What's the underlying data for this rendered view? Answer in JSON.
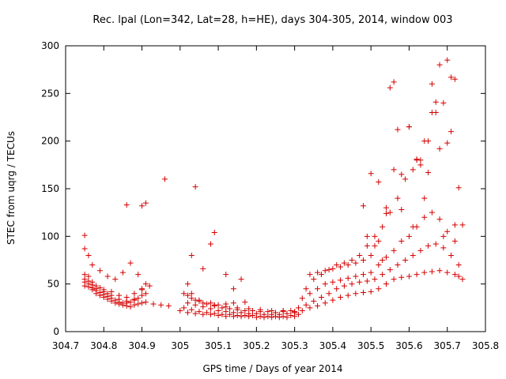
{
  "chart_data": {
    "type": "scatter",
    "title": "Rec. lpal (Lon=342, Lat=28, h=HE), days 304-305, 2014, window 003",
    "xlabel": "GPS time / Days of year 2014",
    "ylabel": "STEC from uqrg / TECUs",
    "xlim": [
      304.7,
      305.8
    ],
    "ylim": [
      0,
      300
    ],
    "xticks": [
      304.7,
      304.8,
      304.9,
      305,
      305.1,
      305.2,
      305.3,
      305.4,
      305.5,
      305.6,
      305.7,
      305.8
    ],
    "xtick_labels": [
      "304.7",
      "304.8",
      "304.9",
      "305",
      "305.1",
      "305.2",
      "305.3",
      "305.4",
      "305.5",
      "305.6",
      "305.7",
      "305.8"
    ],
    "yticks": [
      0,
      50,
      100,
      150,
      200,
      250,
      300
    ],
    "ytick_labels": [
      "0",
      "50",
      "100",
      "150",
      "200",
      "250",
      "300"
    ],
    "grid": false,
    "marker": "plus",
    "color": "#d40000",
    "series": [
      {
        "x": [
          304.75,
          304.76,
          304.77,
          304.78,
          304.79,
          304.8,
          304.81,
          304.82,
          304.83,
          304.84,
          304.85,
          304.86,
          304.87,
          304.88,
          304.89,
          304.9,
          304.91,
          304.93,
          304.95,
          304.97,
          304.75,
          304.76,
          304.77,
          304.78,
          304.79,
          304.8,
          304.81,
          304.82,
          304.83,
          304.84,
          304.85,
          304.86,
          304.87,
          304.88,
          304.89,
          304.9,
          304.91,
          304.75,
          304.76,
          304.77,
          304.78,
          304.8,
          304.81,
          304.82,
          304.84,
          304.86,
          304.88,
          304.9,
          304.75,
          304.76,
          304.77,
          304.78,
          304.79,
          304.8,
          304.82,
          304.84,
          304.86,
          304.88,
          304.9,
          304.92,
          304.75,
          304.76,
          304.77,
          304.79,
          304.81,
          304.83,
          304.85,
          304.87,
          304.89,
          304.91,
          304.75,
          304.86,
          304.9,
          304.91,
          304.96,
          305.04,
          305.08,
          305.02,
          305.03,
          305.04,
          305.06,
          305.09,
          305.12,
          305.14,
          305.17
        ],
        "y": [
          48,
          47,
          44,
          40,
          38,
          36,
          34,
          32,
          30,
          29,
          28,
          27,
          26,
          28,
          29,
          30,
          31,
          29,
          28,
          27,
          52,
          50,
          46,
          43,
          41,
          39,
          37,
          35,
          33,
          31,
          30,
          30,
          31,
          33,
          35,
          38,
          40,
          55,
          53,
          49,
          45,
          42,
          40,
          38,
          34,
          32,
          34,
          45,
          60,
          58,
          52,
          48,
          46,
          44,
          42,
          38,
          36,
          40,
          44,
          48,
          87,
          80,
          70,
          64,
          58,
          55,
          62,
          72,
          60,
          50,
          101,
          133,
          132,
          135,
          160,
          152,
          92,
          38,
          40,
          33,
          30,
          28,
          29,
          30,
          31
        ]
      },
      {
        "x": [
          305,
          305.02,
          305.04,
          305.06,
          305.08,
          305.1,
          305.12,
          305.14,
          305.16,
          305.18,
          305.2,
          305.22,
          305.24,
          305.26,
          305.28,
          305.3,
          305.01,
          305.03,
          305.05,
          305.07,
          305.09,
          305.11,
          305.13,
          305.15,
          305.17,
          305.19,
          305.21,
          305.23,
          305.25,
          305.27,
          305.29,
          305.31,
          305.02,
          305.04,
          305.06,
          305.08,
          305.1,
          305.12,
          305.14,
          305.16,
          305.18,
          305.2,
          305.22,
          305.24,
          305.26,
          305.28,
          305.3,
          305.03,
          305.05,
          305.07,
          305.09,
          305.11,
          305.13,
          305.15,
          305.17,
          305.19,
          305.21,
          305.23,
          305.25,
          305.27,
          305.29,
          305.02,
          305.05,
          305.08,
          305.1,
          305.12,
          305.15,
          305.18,
          305.21,
          305.24,
          305.27,
          305.3,
          305.01,
          305.03,
          305.06,
          305.09,
          305.12,
          305.14,
          305.16
        ],
        "y": [
          22,
          20,
          19,
          18,
          18,
          17,
          16,
          16,
          16,
          16,
          15,
          15,
          15,
          15,
          15,
          16,
          25,
          23,
          21,
          20,
          19,
          18,
          18,
          17,
          17,
          17,
          16,
          16,
          16,
          16,
          17,
          18,
          30,
          28,
          26,
          24,
          22,
          21,
          20,
          20,
          19,
          19,
          18,
          18,
          18,
          19,
          20,
          35,
          32,
          29,
          27,
          25,
          24,
          23,
          22,
          22,
          21,
          21,
          20,
          21,
          22,
          50,
          33,
          30,
          28,
          26,
          25,
          24,
          23,
          22,
          22,
          21,
          40,
          80,
          66,
          104,
          60,
          45,
          55
        ]
      },
      {
        "x": [
          305.3,
          305.32,
          305.34,
          305.36,
          305.38,
          305.4,
          305.42,
          305.44,
          305.46,
          305.48,
          305.5,
          305.52,
          305.54,
          305.56,
          305.58,
          305.6,
          305.62,
          305.64,
          305.66,
          305.68,
          305.7,
          305.72,
          305.73,
          305.31,
          305.33,
          305.35,
          305.37,
          305.39,
          305.41,
          305.43,
          305.45,
          305.47,
          305.49,
          305.51,
          305.53,
          305.55,
          305.57,
          305.59,
          305.61,
          305.63,
          305.65,
          305.67,
          305.69,
          305.71,
          305.73,
          305.32,
          305.34,
          305.36,
          305.38,
          305.4,
          305.42,
          305.44,
          305.46,
          305.48,
          305.5,
          305.52,
          305.54,
          305.56,
          305.58,
          305.6,
          305.62,
          305.64,
          305.66,
          305.68,
          305.7,
          305.72,
          305.33,
          305.35,
          305.37,
          305.39,
          305.41,
          305.43,
          305.45,
          305.47,
          305.49,
          305.51,
          305.53,
          305.55,
          305.57,
          305.59,
          305.61,
          305.63,
          305.65,
          305.67,
          305.69,
          305.71,
          305.34,
          305.36,
          305.38,
          305.4,
          305.42,
          305.44,
          305.46,
          305.48,
          305.5,
          305.52,
          305.54,
          305.56,
          305.58,
          305.6,
          305.62,
          305.64,
          305.66,
          305.68,
          305.7,
          305.72
        ],
        "y": [
          20,
          22,
          25,
          27,
          30,
          33,
          36,
          38,
          40,
          41,
          42,
          45,
          50,
          55,
          57,
          58,
          60,
          62,
          63,
          64,
          62,
          60,
          58,
          25,
          28,
          32,
          36,
          40,
          45,
          48,
          50,
          52,
          53,
          55,
          60,
          65,
          70,
          75,
          80,
          85,
          90,
          92,
          88,
          80,
          70,
          35,
          40,
          45,
          50,
          52,
          54,
          56,
          58,
          60,
          62,
          70,
          78,
          85,
          95,
          100,
          110,
          120,
          125,
          118,
          105,
          95,
          45,
          55,
          60,
          65,
          70,
          72,
          75,
          80,
          90,
          100,
          110,
          125,
          140,
          160,
          170,
          180,
          200,
          230,
          240,
          210,
          60,
          62,
          64,
          66,
          68,
          70,
          72,
          75,
          80,
          95,
          130,
          170,
          165,
          215,
          180,
          200,
          260,
          280,
          285,
          265
        ]
      },
      {
        "x": [
          305.48,
          305.5,
          305.52,
          305.54,
          305.55,
          305.56,
          305.57,
          305.6,
          305.62,
          305.63,
          305.65,
          305.66,
          305.67,
          305.68,
          305.7,
          305.71,
          305.72,
          305.73,
          305.74,
          305.49,
          305.51,
          305.53,
          305.58,
          305.61,
          305.64,
          305.69,
          305.74
        ],
        "y": [
          132,
          166,
          157,
          124,
          256,
          262,
          212,
          215,
          181,
          175,
          167,
          230,
          241,
          192,
          198,
          267,
          112,
          151,
          112,
          100,
          90,
          75,
          128,
          110,
          140,
          100,
          55
        ]
      }
    ]
  }
}
